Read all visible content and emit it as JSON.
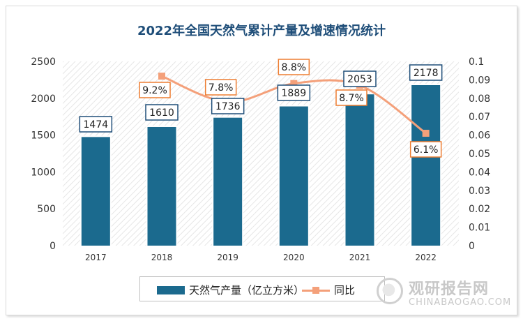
{
  "chart_data": {
    "type": "bar",
    "title": "2022年全国天然气累计产量及增速情况统计",
    "categories": [
      "2017",
      "2018",
      "2019",
      "2020",
      "2021",
      "2022"
    ],
    "series": [
      {
        "name": "天然气产量（亿立方米）",
        "type": "bar",
        "axis": "left",
        "values": [
          1474,
          1610,
          1736,
          1889,
          2053,
          2178
        ],
        "labels": [
          "1474",
          "1610",
          "1736",
          "1889",
          "2053",
          "2178"
        ],
        "color": "#1b6a8e"
      },
      {
        "name": "同比",
        "type": "line",
        "axis": "right",
        "values": [
          null,
          0.092,
          0.078,
          0.088,
          0.087,
          0.061
        ],
        "labels": [
          "",
          "9.2%",
          "7.8%",
          "8.8%",
          "8.7%",
          "6.1%"
        ],
        "color": "#f4a07a"
      }
    ],
    "y_left": {
      "range": [
        0,
        2500
      ],
      "ticks": [
        "0",
        "500",
        "1000",
        "1500",
        "2000",
        "2500"
      ]
    },
    "y_right": {
      "range": [
        0,
        0.1
      ],
      "ticks": [
        "0",
        "0.01",
        "0.02",
        "0.03",
        "0.04",
        "0.05",
        "0.06",
        "0.07",
        "0.08",
        "0.09",
        "0.1"
      ]
    },
    "legend_position": "bottom",
    "grid": false
  },
  "watermark": {
    "cn": "观研报告网",
    "en": "CHINABAOGAO.COM"
  }
}
